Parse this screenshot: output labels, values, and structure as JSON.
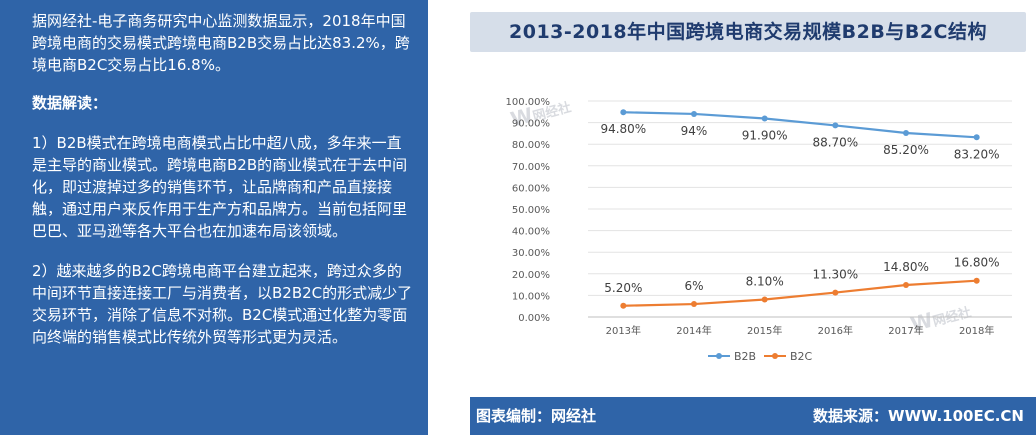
{
  "left_panel": {
    "intro": "据网经社-电子商务研究中心监测数据显示，2018年中国跨境电商的交易模式跨境电商B2B交易占比达83.2%，跨境电商B2C交易占比16.8%。",
    "heading": "数据解读：",
    "point1": "1）B2B模式在跨境电商模式占比中超八成，多年来一直是主导的商业模式。跨境电商B2B的商业模式在于去中间化，即过渡掉过多的销售环节，让品牌商和产品直接接触，通过用户来反作用于生产方和品牌方。当前包括阿里巴巴、亚马逊等各大平台也在加速布局该领域。",
    "point2": "2）越来越多的B2C跨境电商平台建立起来，跨过众多的中间环节直接连接工厂与消费者，以B2B2C的形式减少了交易环节，消除了信息不对称。B2C模式通过化整为零面向终端的销售模式比传统外贸等形式更为灵活。"
  },
  "footer": {
    "left": "图表编制：网经社",
    "right": "数据来源：WWW.100EC.CN"
  },
  "watermark": {
    "brand": "网经社",
    "url": "WWW.100EC.CN"
  },
  "colors": {
    "panel_blue": "#2f64a8",
    "b2b": "#5b9bd5",
    "b2c": "#ed7d31",
    "title_bg": "#d6dee9"
  },
  "chart_data": {
    "type": "line",
    "title": "2013-2018年中国跨境电商交易规模B2B与B2C结构",
    "categories": [
      "2013年",
      "2014年",
      "2015年",
      "2016年",
      "2017年",
      "2018年"
    ],
    "series": [
      {
        "name": "B2B",
        "values": [
          94.8,
          94.0,
          91.9,
          88.7,
          85.2,
          83.2
        ],
        "labels": [
          "94.80%",
          "94%",
          "91.90%",
          "88.70%",
          "85.20%",
          "83.20%"
        ]
      },
      {
        "name": "B2C",
        "values": [
          5.2,
          6.0,
          8.1,
          11.3,
          14.8,
          16.8
        ],
        "labels": [
          "5.20%",
          "6%",
          "8.10%",
          "11.30%",
          "14.80%",
          "16.80%"
        ]
      }
    ],
    "ylim": [
      0,
      100
    ],
    "yticks": [
      "0.00%",
      "10.00%",
      "20.00%",
      "30.00%",
      "40.00%",
      "50.00%",
      "60.00%",
      "70.00%",
      "80.00%",
      "90.00%",
      "100.00%"
    ],
    "grid": true,
    "legend": "bottom-left"
  }
}
